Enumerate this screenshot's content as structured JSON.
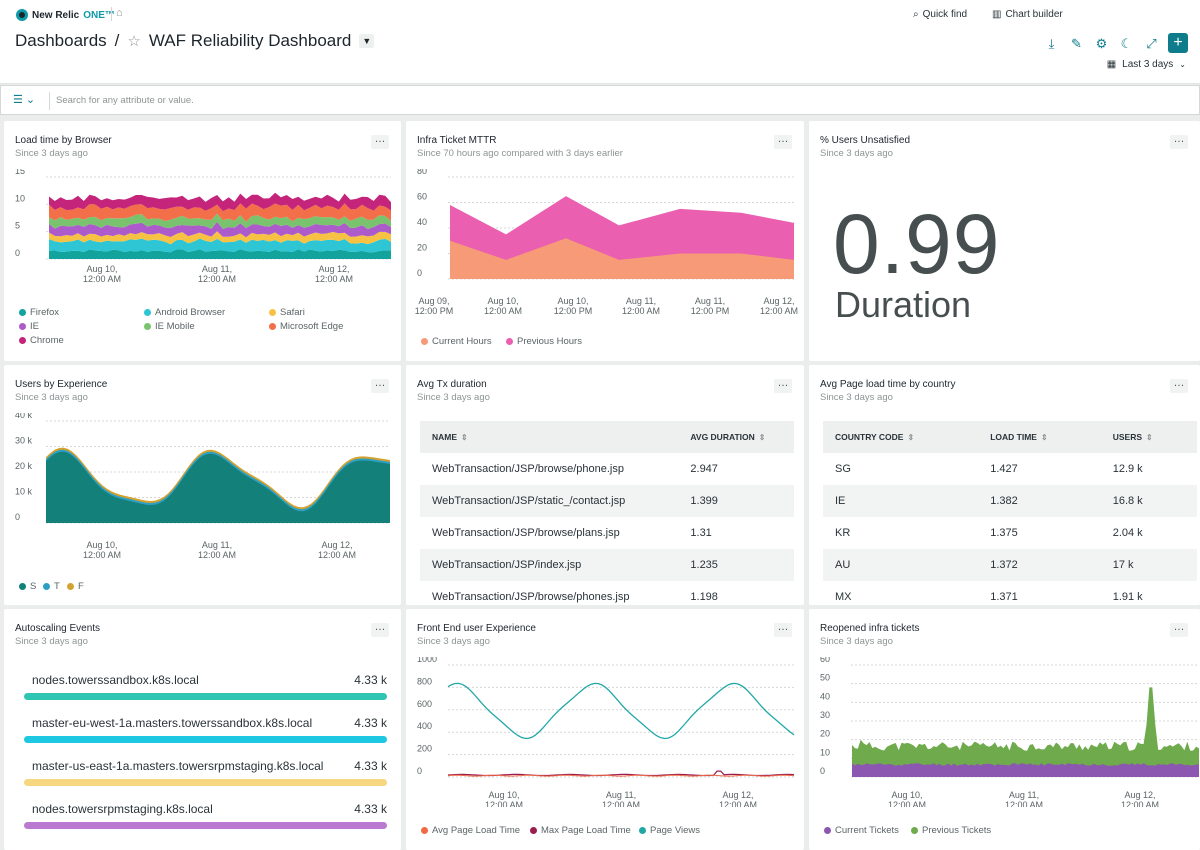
{
  "app": {
    "brand_prefix": "New Relic",
    "brand_suffix": "ONE™"
  },
  "topbar": {
    "quick_find": "Quick find",
    "chart_builder": "Chart builder",
    "time_range": "Last 3 days"
  },
  "breadcrumb": {
    "root": "Dashboards",
    "separator": "/",
    "title": "WAF Reliability Dashboard"
  },
  "filter": {
    "placeholder": "Search for any attribute or value."
  },
  "icons": [
    "funnel-icon",
    "chevron-down-icon",
    "home-icon",
    "search-icon",
    "bar-chart-icon",
    "download-icon",
    "pencil-icon",
    "gear-icon",
    "moon-icon",
    "expand-icon",
    "plus-icon",
    "calendar-icon",
    "star-icon"
  ],
  "colors": {
    "accent": "#0e7c8a"
  },
  "widgets": {
    "load_time": {
      "title": "Load time by Browser",
      "subtitle": "Since 3 days ago",
      "yticks": [
        "15",
        "10",
        "5",
        "0"
      ],
      "xticks": [
        [
          "Aug 10,",
          "12:00 AM"
        ],
        [
          "Aug 11,",
          "12:00 AM"
        ],
        [
          "Aug 12,",
          "12:00 AM"
        ]
      ],
      "legend": [
        {
          "name": "Firefox",
          "color": "#11a39c"
        },
        {
          "name": "Android Browser",
          "color": "#2ec5d5"
        },
        {
          "name": "Safari",
          "color": "#f7c244"
        },
        {
          "name": "IE",
          "color": "#ad5acb"
        },
        {
          "name": "IE Mobile",
          "color": "#79c36f"
        },
        {
          "name": "Microsoft Edge",
          "color": "#f26f4a"
        },
        {
          "name": "Chrome",
          "color": "#c4257b"
        }
      ]
    },
    "mttr": {
      "title": "Infra Ticket MTTR",
      "subtitle": "Since 70 hours ago compared with 3 days earlier",
      "yticks": [
        "80",
        "60",
        "40",
        "20",
        "0"
      ],
      "xticks": [
        [
          "Aug 09,",
          "12:00 PM"
        ],
        [
          "Aug 10,",
          "12:00 AM"
        ],
        [
          "Aug 10,",
          "12:00 PM"
        ],
        [
          "Aug 11,",
          "12:00 AM"
        ],
        [
          "Aug 11,",
          "12:00 PM"
        ],
        [
          "Aug 12,",
          "12:00 AM"
        ]
      ],
      "legend": [
        {
          "name": "Current Hours",
          "color": "#f79a77"
        },
        {
          "name": "Previous Hours",
          "color": "#ea5fb0"
        }
      ]
    },
    "unsatisfied": {
      "title": "% Users Unsatisfied",
      "subtitle": "Since 3 days ago",
      "value": "0.99",
      "unit": "Duration"
    },
    "experience": {
      "title": "Users by Experience",
      "subtitle": "Since 3 days ago",
      "yticks": [
        "40 k",
        "30 k",
        "20 k",
        "10 k",
        "0"
      ],
      "xticks": [
        [
          "Aug 10,",
          "12:00 AM"
        ],
        [
          "Aug 11,",
          "12:00 AM"
        ],
        [
          "Aug 12,",
          "12:00 AM"
        ]
      ],
      "legend": [
        {
          "name": "S",
          "color": "#13817a"
        },
        {
          "name": "T",
          "color": "#2d9fc5"
        },
        {
          "name": "F",
          "color": "#d4a22e"
        }
      ]
    },
    "avg_tx": {
      "title": "Avg Tx duration",
      "subtitle": "Since 3 days ago",
      "columns": [
        "NAME",
        "AVG DURATION"
      ],
      "rows": [
        [
          "WebTransaction/JSP/browse/phone.jsp",
          "2.947"
        ],
        [
          "WebTransaction/JSP/static_/contact.jsp",
          "1.399"
        ],
        [
          "WebTransaction/JSP/browse/plans.jsp",
          "1.31"
        ],
        [
          "WebTransaction/JSP/index.jsp",
          "1.235"
        ],
        [
          "WebTransaction/JSP/browse/phones.jsp",
          "1.198"
        ]
      ]
    },
    "country": {
      "title": "Avg Page load time by country",
      "subtitle": "Since 3 days ago",
      "columns": [
        "COUNTRY CODE",
        "LOAD TIME",
        "USERS"
      ],
      "rows": [
        [
          "SG",
          "1.427",
          "12.9 k"
        ],
        [
          "IE",
          "1.382",
          "16.8 k"
        ],
        [
          "KR",
          "1.375",
          "2.04 k"
        ],
        [
          "AU",
          "1.372",
          "17 k"
        ],
        [
          "MX",
          "1.371",
          "1.91 k"
        ]
      ]
    },
    "autoscaling": {
      "title": "Autoscaling Events",
      "subtitle": "Since 3 days ago",
      "items": [
        {
          "name": "nodes.towerssandbox.k8s.local",
          "value": "4.33 k",
          "color": "#2ec5b4"
        },
        {
          "name": "master-eu-west-1a.masters.towerssandbox.k8s.local",
          "value": "4.33 k",
          "color": "#1ec8e2"
        },
        {
          "name": "master-us-east-1a.masters.towersrpmstaging.k8s.local",
          "value": "4.33 k",
          "color": "#f7d680"
        },
        {
          "name": "nodes.towersrpmstaging.k8s.local",
          "value": "4.33 k",
          "color": "#b97ad0"
        }
      ]
    },
    "frontend": {
      "title": "Front End user Experience",
      "subtitle": "Since 3 days ago",
      "yticks": [
        "1000",
        "800",
        "600",
        "400",
        "200",
        "0"
      ],
      "xticks": [
        [
          "Aug 10,",
          "12:00 AM"
        ],
        [
          "Aug 11,",
          "12:00 AM"
        ],
        [
          "Aug 12,",
          "12:00 AM"
        ]
      ],
      "legend": [
        {
          "name": "Avg Page Load Time",
          "color": "#ef6a45"
        },
        {
          "name": "Max Page Load Time",
          "color": "#9b1d4f"
        },
        {
          "name": "Page Views",
          "color": "#22a7a7"
        }
      ]
    },
    "reopened": {
      "title": "Reopened infra tickets",
      "subtitle": "Since 3 days ago",
      "yticks": [
        "60",
        "50",
        "40",
        "30",
        "20",
        "10",
        "0"
      ],
      "xticks": [
        [
          "Aug 10,",
          "12:00 AM"
        ],
        [
          "Aug 11,",
          "12:00 AM"
        ],
        [
          "Aug 12,",
          "12:00 AM"
        ]
      ],
      "legend": [
        {
          "name": "Current Tickets",
          "color": "#8c57b0"
        },
        {
          "name": "Previous Tickets",
          "color": "#6faa4c"
        }
      ]
    }
  }
}
